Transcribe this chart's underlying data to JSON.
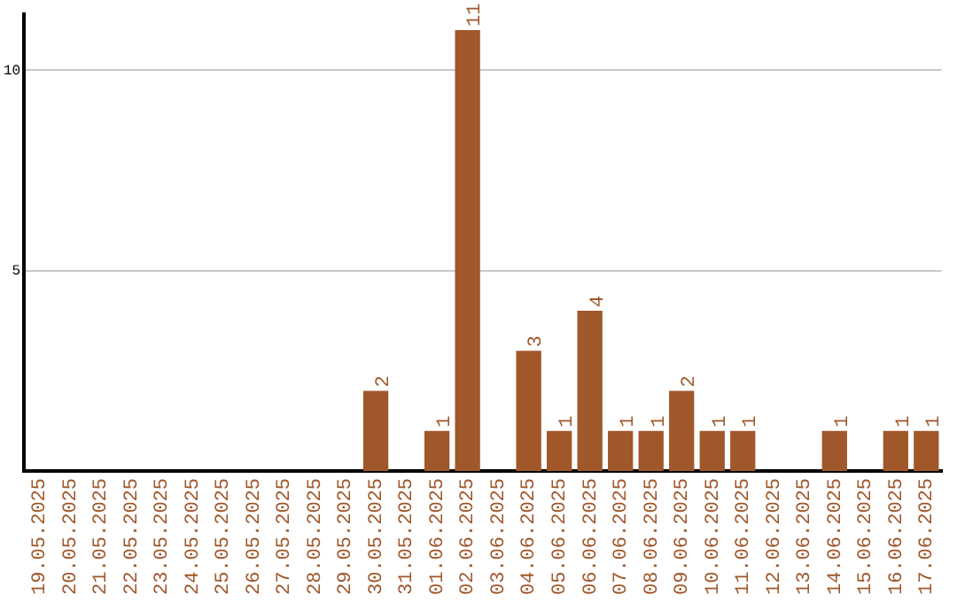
{
  "chart_data": {
    "type": "bar",
    "categories": [
      "19.05.2025",
      "20.05.2025",
      "21.05.2025",
      "22.05.2025",
      "23.05.2025",
      "24.05.2025",
      "25.05.2025",
      "26.05.2025",
      "27.05.2025",
      "28.05.2025",
      "29.05.2025",
      "30.05.2025",
      "31.05.2025",
      "01.06.2025",
      "02.06.2025",
      "03.06.2025",
      "04.06.2025",
      "05.06.2025",
      "06.06.2025",
      "07.06.2025",
      "08.06.2025",
      "09.06.2025",
      "10.06.2025",
      "11.06.2025",
      "12.06.2025",
      "13.06.2025",
      "14.06.2025",
      "15.06.2025",
      "16.06.2025",
      "17.06.2025"
    ],
    "values": [
      0,
      0,
      0,
      0,
      0,
      0,
      0,
      0,
      0,
      0,
      0,
      2,
      0,
      1,
      11,
      0,
      3,
      1,
      4,
      1,
      1,
      2,
      1,
      1,
      0,
      0,
      1,
      0,
      1,
      1
    ],
    "value_labels": [
      null,
      null,
      null,
      null,
      null,
      null,
      null,
      null,
      null,
      null,
      null,
      "2",
      null,
      "1",
      "11",
      null,
      "3",
      "1",
      "4",
      "1",
      "1",
      "2",
      "1",
      "1",
      null,
      null,
      "1",
      null,
      "1",
      "1"
    ],
    "color": "#a0572a",
    "ylim": [
      0,
      11.4
    ],
    "yticks": [
      5,
      10
    ],
    "grid": "y",
    "legend": false
  }
}
